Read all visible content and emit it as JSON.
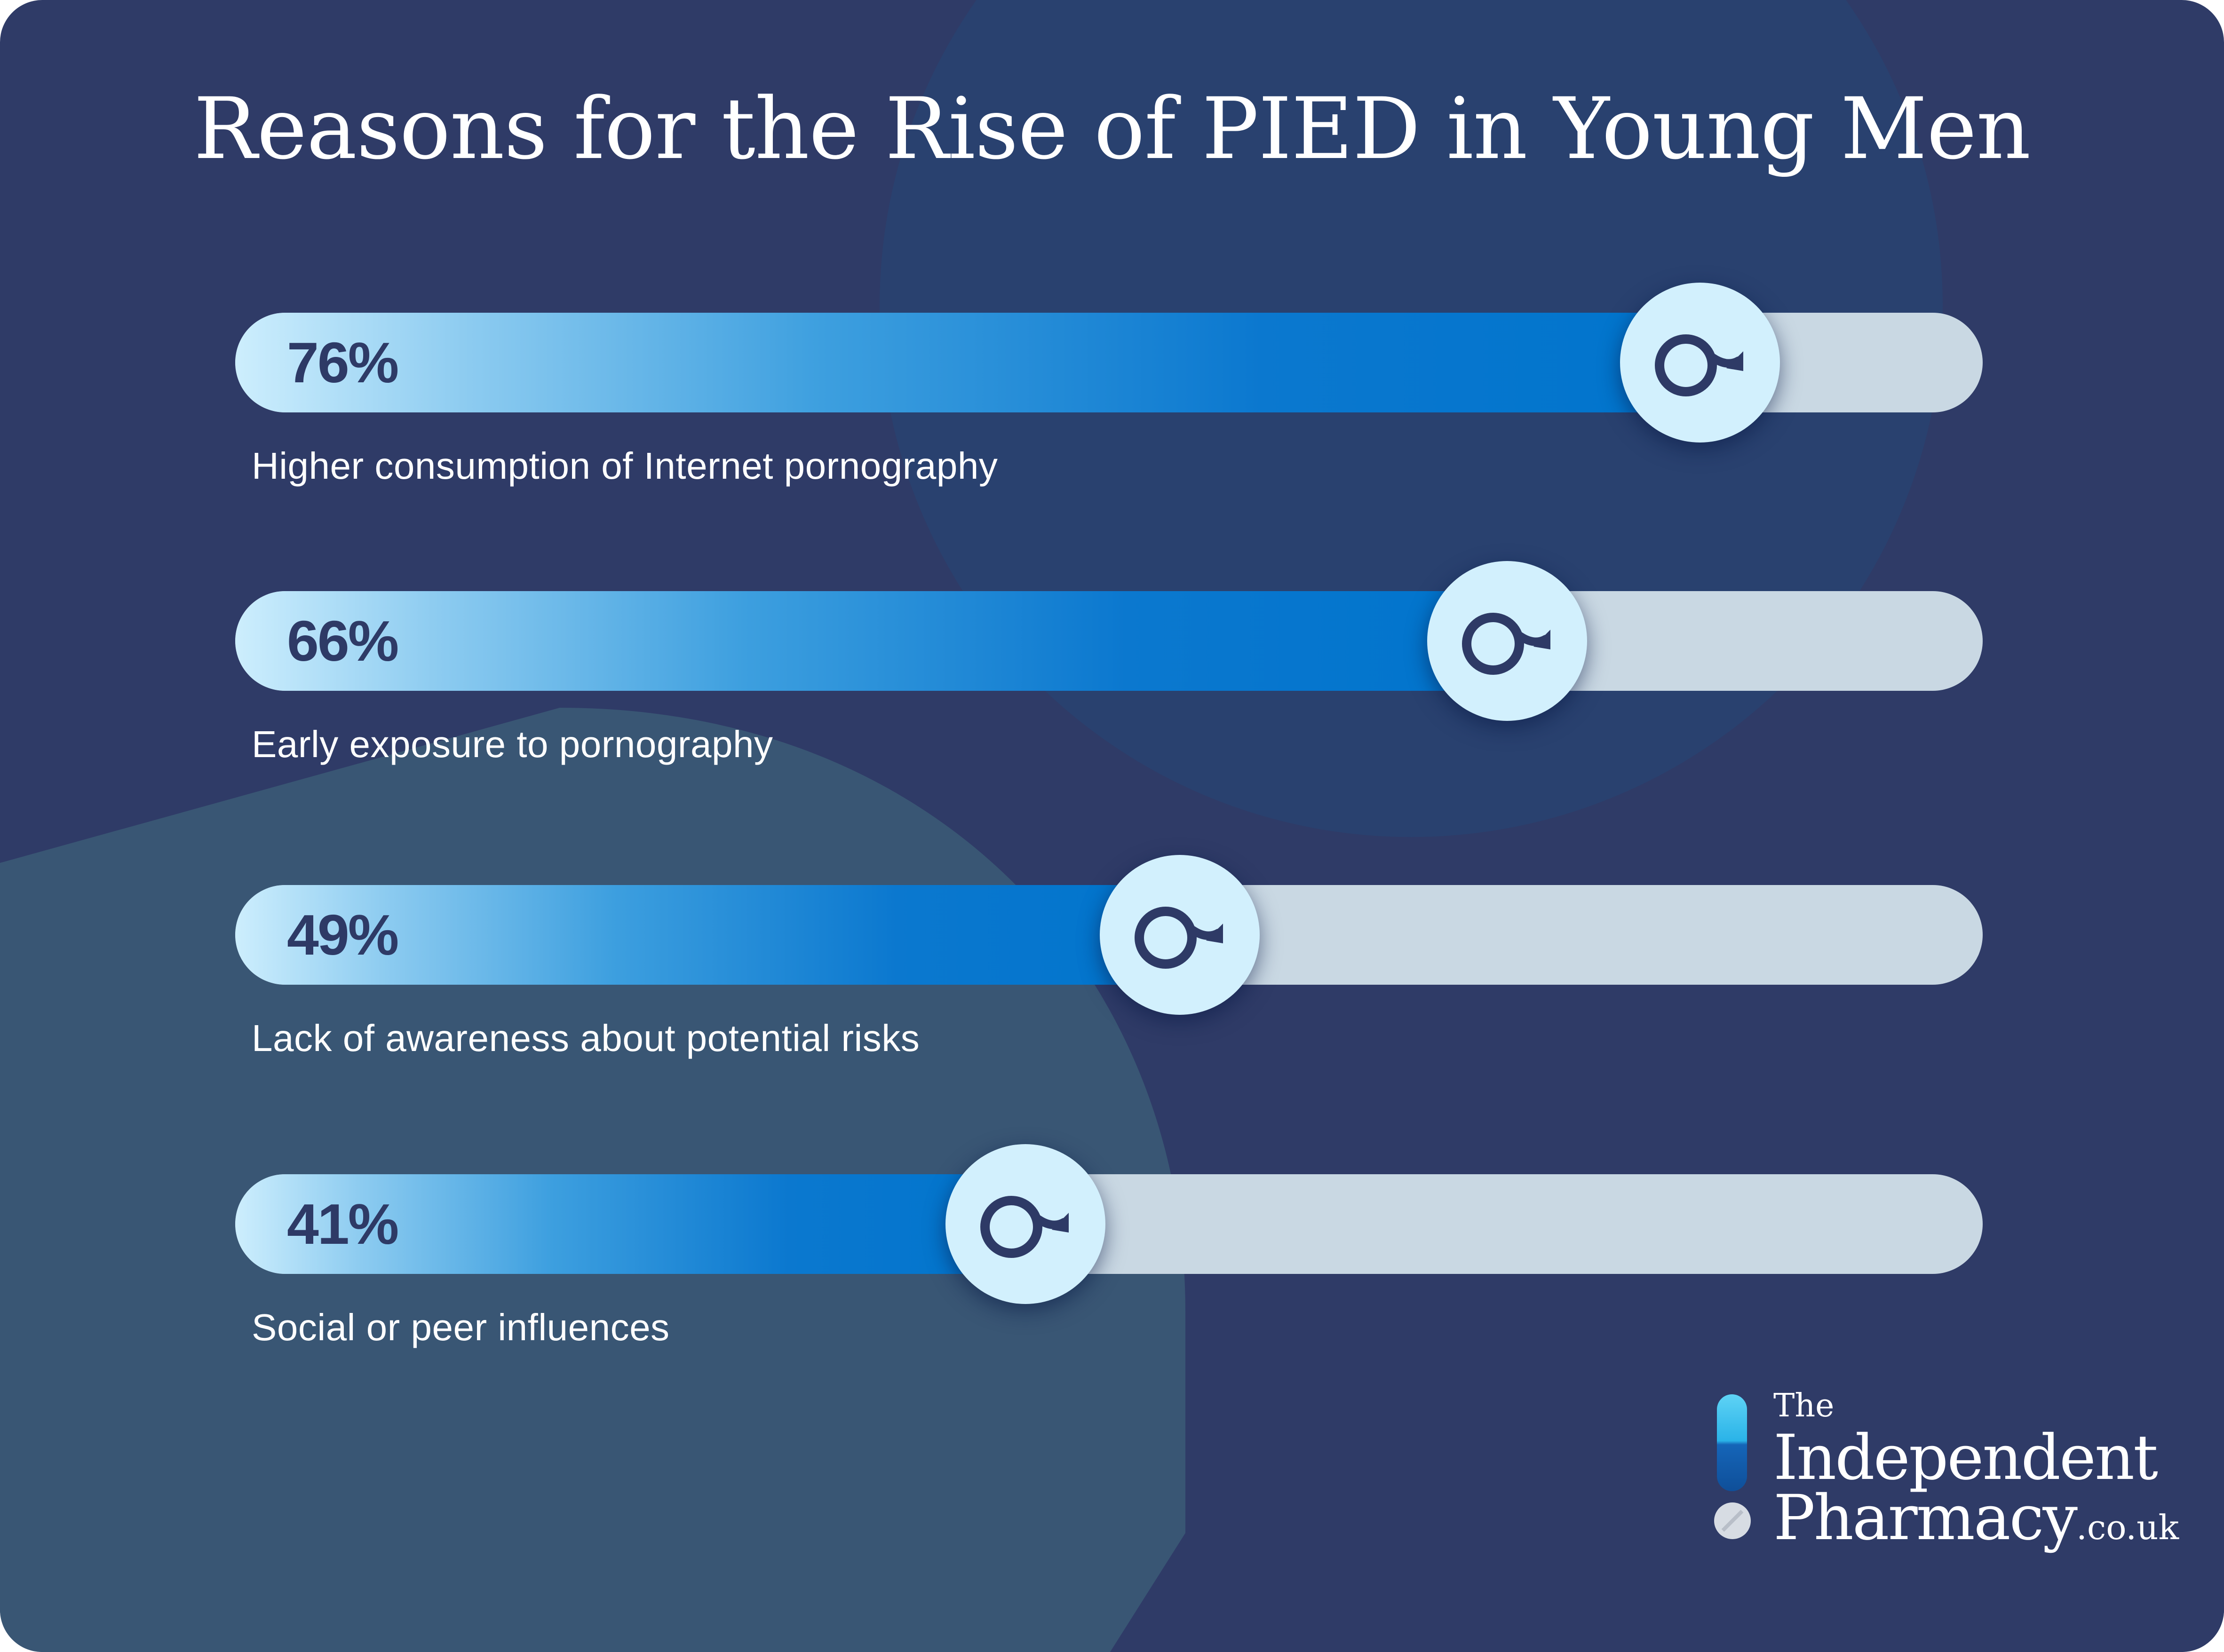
{
  "title": "Reasons for the Rise of PIED in Young Men",
  "colors": {
    "background": "#2f3b67",
    "circle_top_right": "#29416f",
    "circle_bottom_left": "#395674",
    "track": "#c9d8e3",
    "fill_end": "#0074cc",
    "knob": "#d2f0fd",
    "text_dark": "#2e3a66",
    "text_light": "#ffffff"
  },
  "icons": {
    "knob": "male-symbol-icon",
    "logo_capsule": "capsule-icon",
    "logo_tablet": "tablet-icon"
  },
  "chart_data": {
    "type": "bar",
    "orientation": "horizontal",
    "title": "Reasons for the Rise of PIED in Young Men",
    "categories": [
      "Higher consumption of Internet pornography",
      "Early exposure to pornography",
      "Lack of awareness about potential risks",
      "Social or peer influences"
    ],
    "values": [
      76,
      66,
      49,
      41
    ],
    "value_labels": [
      "76%",
      "66%",
      "49%",
      "41%"
    ],
    "unit": "%",
    "xlim": [
      0,
      100
    ],
    "grid": false,
    "legend": "none"
  },
  "logo": {
    "the": "The",
    "independent": "Independent",
    "pharmacy": "Pharmacy",
    "domain": ".co.uk"
  }
}
